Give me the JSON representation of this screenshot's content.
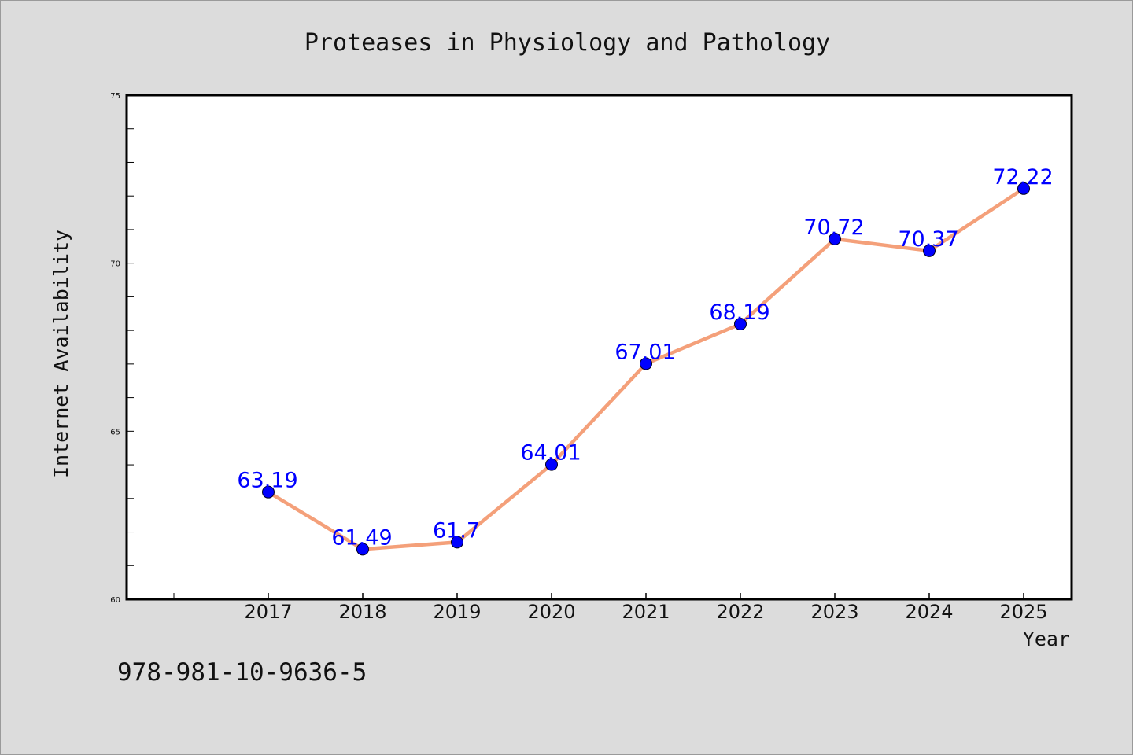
{
  "chart_data": {
    "type": "line",
    "title": "Proteases in Physiology and Pathology",
    "xlabel": "Year",
    "ylabel": "Internet Availability",
    "categories": [
      "2017",
      "2018",
      "2019",
      "2020",
      "2021",
      "2022",
      "2023",
      "2024",
      "2025"
    ],
    "series": [
      {
        "values": [
          63.19,
          61.49,
          61.7,
          64.01,
          67.01,
          68.19,
          70.72,
          70.37,
          72.22
        ],
        "data_labels": [
          "63.19",
          "61.49",
          "61.7",
          "64.01",
          "67.01",
          "68.19",
          "70.72",
          "70.37",
          "72.22"
        ],
        "line_color": "#f4a07a",
        "marker_color": "#0000ff"
      }
    ],
    "ylim": [
      60,
      75
    ],
    "y_ticks": [
      "60",
      "65",
      "70",
      "75"
    ],
    "grid": false,
    "legend": "none"
  },
  "footer": {
    "isbn": "978-981-10-9636-5"
  },
  "colors": {
    "background": "#dcdcdc",
    "plot_background": "#ffffff",
    "axes": "#000000"
  }
}
